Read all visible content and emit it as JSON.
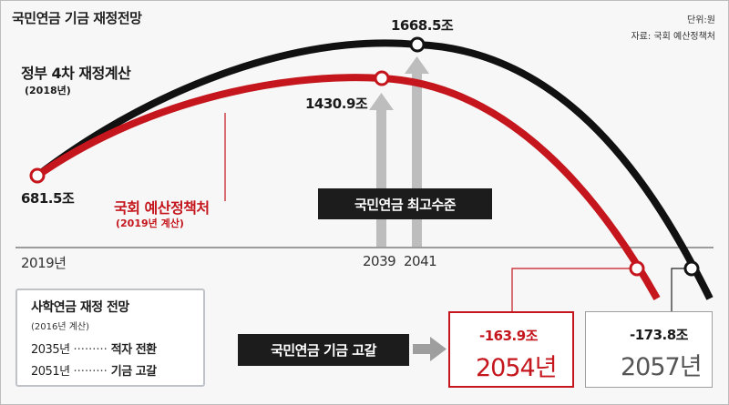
{
  "title": "국민연금 기금 재정전망",
  "unit": "단위:원",
  "source": "자료: 국회 예산정책처",
  "chart_data": {
    "type": "line",
    "x_ticks": [
      "2019년",
      "2039",
      "2041"
    ],
    "series": [
      {
        "name": "정부 4차 재정계산",
        "note": "(2018년)",
        "color": "#111111",
        "points": [
          {
            "year": 2019,
            "value": 681.5
          },
          {
            "year": 2041,
            "value": 1668.5
          },
          {
            "year": 2057,
            "value": -173.8
          }
        ],
        "peak_label": "1668.5조",
        "depletion_year": "2057년",
        "depletion_value": "-173.8조"
      },
      {
        "name": "국회 예산정책처",
        "note": "(2019년 계산)",
        "color": "#c4161c",
        "points": [
          {
            "year": 2019,
            "value": 681.5
          },
          {
            "year": 2039,
            "value": 1430.9
          },
          {
            "year": 2054,
            "value": -163.9
          }
        ],
        "peak_label": "1430.9조",
        "depletion_year": "2054년",
        "depletion_value": "-163.9조"
      }
    ],
    "start_label": "681.5조",
    "annotations": {
      "peak": "국민연금 최고수준",
      "depletion": "국민연금 기금 고갈"
    }
  },
  "info_box": {
    "title": "사학연금 재정 전망",
    "subtitle": "(2016년 계산)",
    "rows": [
      {
        "year": "2035년",
        "dots": "·········",
        "result": "적자 전환"
      },
      {
        "year": "2051년",
        "dots": "·········",
        "result": "기금 고갈"
      }
    ]
  }
}
